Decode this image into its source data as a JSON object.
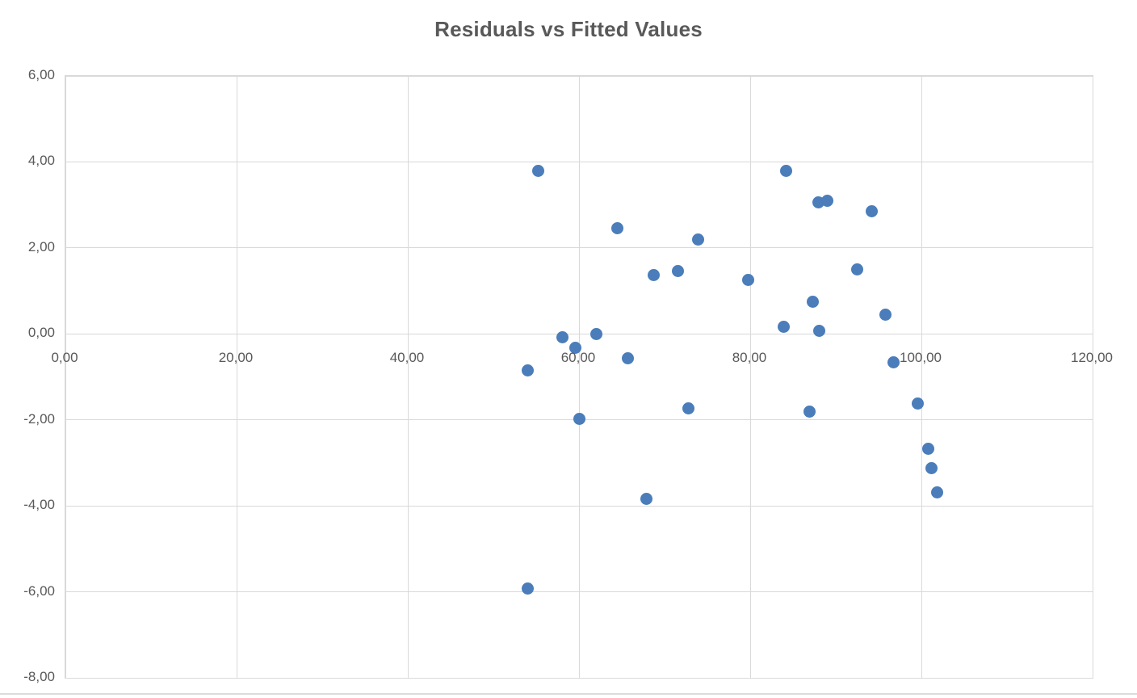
{
  "title": "Residuals vs Fitted Values",
  "colors": {
    "marker": "#4a7dba",
    "gridline": "#d9d9d9",
    "axis_text": "#595959",
    "title_text": "#595959"
  },
  "chart_data": {
    "type": "scatter",
    "title": "Residuals vs Fitted Values",
    "xlabel": "",
    "ylabel": "",
    "xlim": [
      0,
      120
    ],
    "ylim": [
      -8,
      6
    ],
    "grid": true,
    "legend": false,
    "decimal_separator": ",",
    "x_ticks": {
      "values": [
        0,
        20,
        40,
        60,
        80,
        100,
        120
      ],
      "labels": [
        "0,00",
        "20,00",
        "40,00",
        "60,00",
        "80,00",
        "100,00",
        "120,00"
      ]
    },
    "y_ticks": {
      "values": [
        6,
        4,
        2,
        0,
        -2,
        -4,
        -6,
        -8
      ],
      "labels": [
        "6,00",
        "4,00",
        "2,00",
        "0,00",
        "-2,00",
        "-4,00",
        "-6,00",
        "-8,00"
      ]
    },
    "series_name": "Residuals",
    "points": [
      [
        55.2,
        3.8
      ],
      [
        64.5,
        2.45
      ],
      [
        84.2,
        3.8
      ],
      [
        88.0,
        3.05
      ],
      [
        89.0,
        3.1
      ],
      [
        94.2,
        2.85
      ],
      [
        73.9,
        2.2
      ],
      [
        68.7,
        1.36
      ],
      [
        71.6,
        1.47
      ],
      [
        79.8,
        1.26
      ],
      [
        92.5,
        1.49
      ],
      [
        87.3,
        0.74
      ],
      [
        95.8,
        0.44
      ],
      [
        83.9,
        0.16
      ],
      [
        88.1,
        0.07
      ],
      [
        58.1,
        -0.08
      ],
      [
        62.0,
        0.0
      ],
      [
        59.6,
        -0.33
      ],
      [
        65.7,
        -0.57
      ],
      [
        54.0,
        -0.85
      ],
      [
        96.7,
        -0.66
      ],
      [
        99.6,
        -1.62
      ],
      [
        100.8,
        -2.67
      ],
      [
        101.2,
        -3.12
      ],
      [
        101.8,
        -3.68
      ],
      [
        60.0,
        -1.98
      ],
      [
        72.8,
        -1.73
      ],
      [
        67.9,
        -3.83
      ],
      [
        86.9,
        -1.81
      ],
      [
        54.0,
        -5.93
      ]
    ]
  }
}
